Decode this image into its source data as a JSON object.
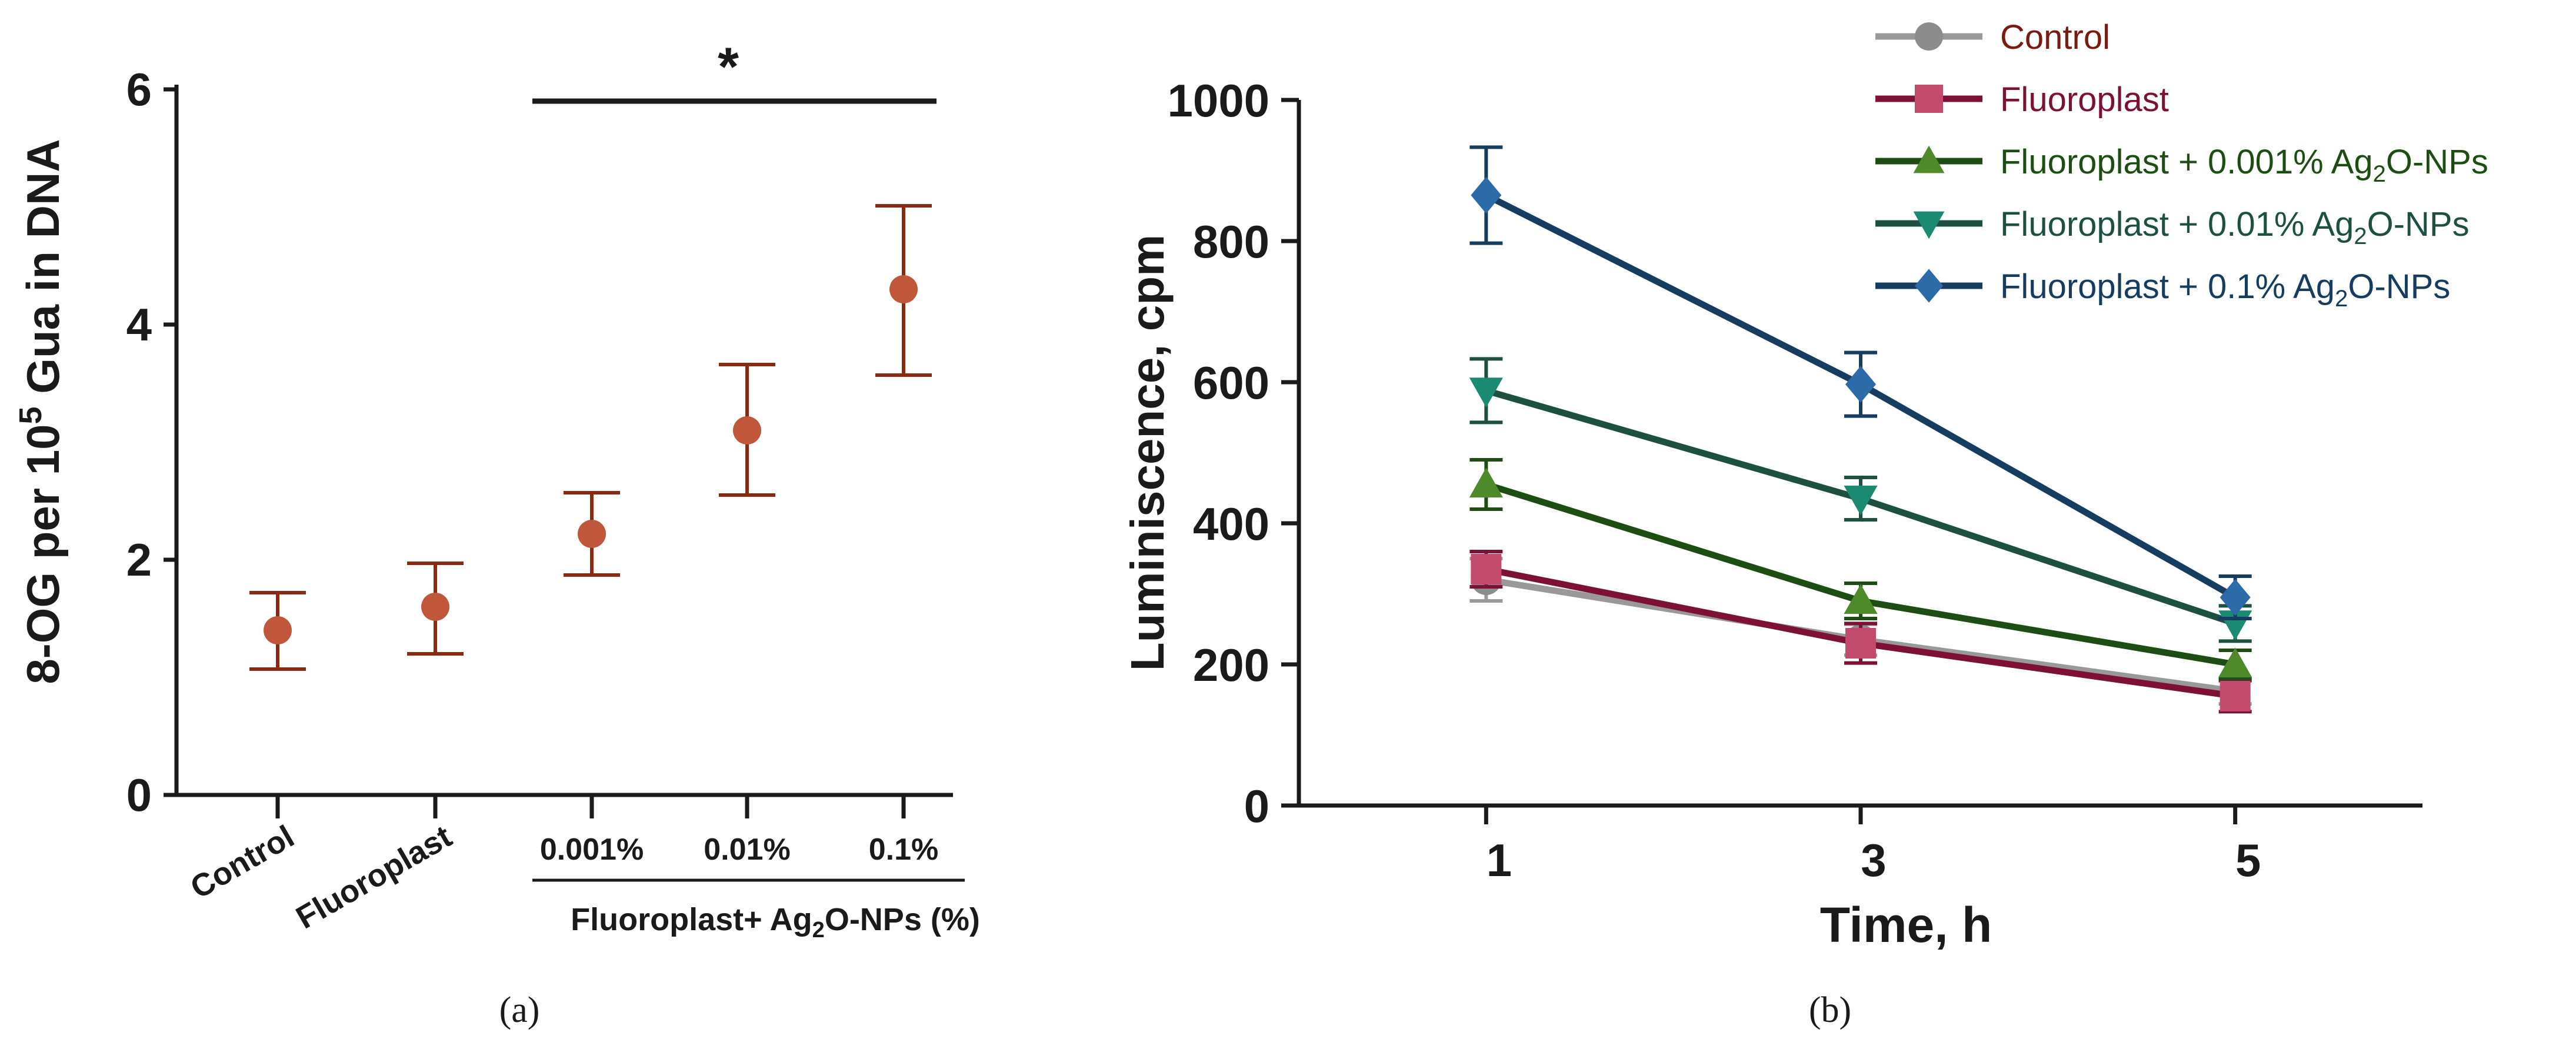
{
  "colors": {
    "axis": "#1a1a1a",
    "panel_a_marker": "#c0573a",
    "panel_a_error": "#8b2a10"
  },
  "chart_data": [
    {
      "panel": "a",
      "panel_label": "(a)",
      "type": "scatter",
      "ylabel": "8-OG per 10⁵ Gua in DNA",
      "ylabel_parts": {
        "prefix": "8-OG per 10",
        "sup": "5",
        "suffix": " Gua in DNA"
      },
      "ylim": [
        0,
        6
      ],
      "yticks": [
        "0",
        "2",
        "4",
        "6"
      ],
      "categories": [
        "Control",
        "Fluoroplast",
        "0.001%",
        "0.01%",
        "0.1%"
      ],
      "group_label": "Fluoroplast+ Ag₂O-NPs (%)",
      "group_label_parts": {
        "prefix": "Fluoroplast+ Ag",
        "sub": "2",
        "suffix": "O-NPs (%)"
      },
      "values": [
        1.4,
        1.6,
        2.22,
        3.1,
        4.3
      ],
      "error_low": [
        1.07,
        1.2,
        1.87,
        2.55,
        3.57
      ],
      "error_high": [
        1.72,
        1.97,
        2.57,
        3.66,
        5.01
      ],
      "significance": {
        "label": "*",
        "from": "0.001%",
        "to": "0.1%"
      }
    },
    {
      "panel": "b",
      "panel_label": "(b)",
      "type": "line",
      "xlabel": "Time, h",
      "ylabel": "Luminiscence, cpm",
      "x": [
        1,
        3,
        5
      ],
      "xticks": [
        "1",
        "3",
        "5"
      ],
      "xlim": [
        0,
        6
      ],
      "ylim": [
        0,
        1000
      ],
      "yticks": [
        "0",
        "200",
        "400",
        "600",
        "800",
        "1000"
      ],
      "series": [
        {
          "name": "Control",
          "marker": "circle",
          "line_color": "#999999",
          "marker_color": "#8c8c8c",
          "label_color": "#7b1a12",
          "label_parts": {
            "prefix": "Control",
            "sub": "",
            "suffix": ""
          },
          "values": [
            320,
            235,
            162
          ],
          "error": [
            30,
            22,
            18
          ]
        },
        {
          "name": "Fluoroplast",
          "marker": "square",
          "line_color": "#7d1035",
          "marker_color": "#c24a6c",
          "label_color": "#7d1035",
          "label_parts": {
            "prefix": "Fluoroplast",
            "sub": "",
            "suffix": ""
          },
          "values": [
            335,
            230,
            155
          ],
          "error": [
            25,
            28,
            22
          ]
        },
        {
          "name": "Fluoroplast + 0.001%  Ag₂O-NPs",
          "marker": "triangle-up",
          "line_color": "#1e4d13",
          "marker_color": "#4f8a2a",
          "label_color": "#1e4d13",
          "label_parts": {
            "prefix": "Fluoroplast + 0.001%  Ag",
            "sub": "2",
            "suffix": "O-NPs"
          },
          "values": [
            455,
            290,
            200
          ],
          "error": [
            35,
            25,
            20
          ]
        },
        {
          "name": "Fluoroplast + 0.01%  Ag₂O-NPs",
          "marker": "triangle-down",
          "line_color": "#1d5040",
          "marker_color": "#1b8a72",
          "label_color": "#1d5040",
          "label_parts": {
            "prefix": "Fluoroplast + 0.01%  Ag",
            "sub": "2",
            "suffix": "O-NPs"
          },
          "values": [
            588,
            435,
            258
          ],
          "error": [
            45,
            30,
            25
          ]
        },
        {
          "name": "Fluoroplast + 0.1%  Ag₂O-NPs",
          "marker": "diamond",
          "line_color": "#163d60",
          "marker_color": "#2c6aa8",
          "label_color": "#163d60",
          "label_parts": {
            "prefix": "Fluoroplast + 0.1%  Ag",
            "sub": "2",
            "suffix": "O-NPs"
          },
          "values": [
            865,
            597,
            295
          ],
          "error": [
            68,
            45,
            30
          ]
        }
      ]
    }
  ]
}
